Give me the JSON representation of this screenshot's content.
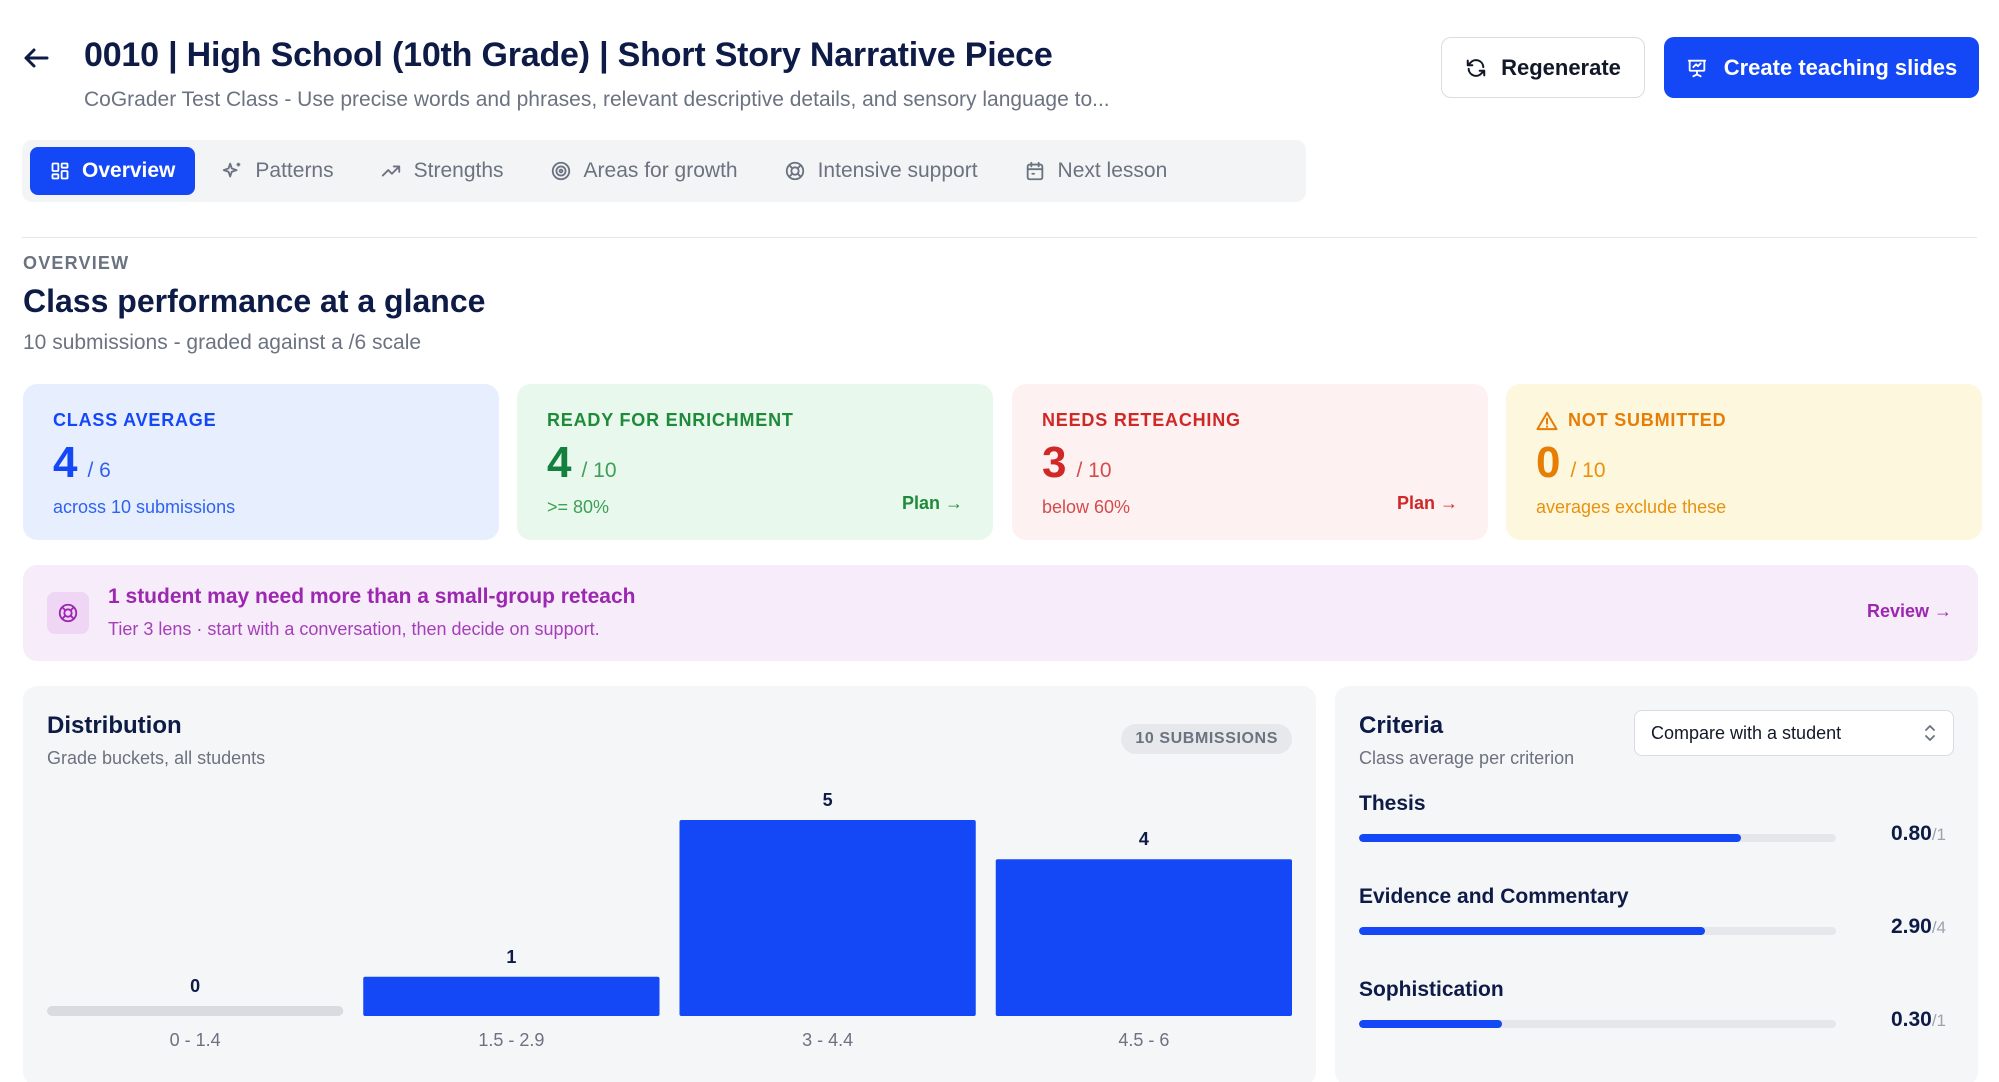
{
  "header": {
    "title": "0010 | High School (10th Grade) | Short Story Narrative Piece",
    "subtitle": "CoGrader Test Class - Use precise words and phrases, relevant descriptive details, and sensory language to...",
    "regenerate_label": "Regenerate",
    "slides_label": "Create teaching slides"
  },
  "tabs": [
    {
      "label": "Overview",
      "icon": "grid-icon",
      "active": true
    },
    {
      "label": "Patterns",
      "icon": "sparkle-icon",
      "active": false
    },
    {
      "label": "Strengths",
      "icon": "trend-up-icon",
      "active": false
    },
    {
      "label": "Areas for growth",
      "icon": "target-icon",
      "active": false
    },
    {
      "label": "Intensive support",
      "icon": "lifebuoy-icon",
      "active": false
    },
    {
      "label": "Next lesson",
      "icon": "calendar-icon",
      "active": false
    }
  ],
  "overview": {
    "eyebrow": "OVERVIEW",
    "title": "Class performance at a glance",
    "subtitle": "10 submissions - graded against a /6 scale"
  },
  "stats": {
    "class_average": {
      "label": "CLASS AVERAGE",
      "value": "4",
      "denom": "/ 6",
      "foot": "across 10 submissions"
    },
    "enrichment": {
      "label": "READY FOR ENRICHMENT",
      "value": "4",
      "denom": "/ 10",
      "foot": ">= 80%",
      "action": "Plan →"
    },
    "reteaching": {
      "label": "NEEDS RETEACHING",
      "value": "3",
      "denom": "/ 10",
      "foot": "below 60%",
      "action": "Plan →"
    },
    "not_submitted": {
      "label": "NOT SUBMITTED",
      "value": "0",
      "denom": "/ 10",
      "foot": "averages exclude these"
    }
  },
  "banner": {
    "title": "1 student may need more than a small-group reteach",
    "subtitle": "Tier 3 lens · start with a conversation, then decide on support.",
    "action": "Review →"
  },
  "distribution": {
    "title": "Distribution",
    "subtitle": "Grade buckets, all students",
    "badge": "10 SUBMISSIONS"
  },
  "chart_data": {
    "type": "bar",
    "categories": [
      "0 - 1.4",
      "1.5 - 2.9",
      "3 - 4.4",
      "4.5 - 6"
    ],
    "values": [
      0,
      1,
      5,
      4
    ],
    "ylim": [
      0,
      5
    ],
    "grid": false,
    "colors": {
      "bar": "#1447f5",
      "empty": "#d9dbe0"
    }
  },
  "criteria": {
    "title": "Criteria",
    "subtitle": "Class average per criterion",
    "compare_label": "Compare with a student",
    "items": [
      {
        "name": "Thesis",
        "score": "0.80",
        "max": "/1",
        "fraction": 0.8
      },
      {
        "name": "Evidence and Commentary",
        "score": "2.90",
        "max": "/4",
        "fraction": 0.725
      },
      {
        "name": "Sophistication",
        "score": "0.30",
        "max": "/1",
        "fraction": 0.3
      }
    ]
  }
}
